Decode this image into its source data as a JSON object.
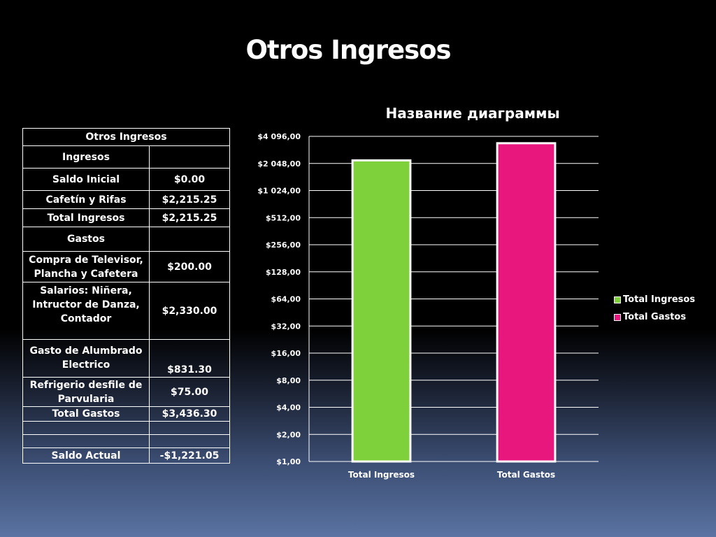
{
  "slide": {
    "title": "Otros Ingresos"
  },
  "table": {
    "header": "Otros Ingresos",
    "rows": [
      {
        "label": "Ingresos",
        "value": ""
      },
      {
        "label": "Saldo Inicial",
        "value": "$0.00"
      },
      {
        "label": "Cafetín y Rifas",
        "value": "$2,215.25"
      },
      {
        "label": "Total Ingresos",
        "value": "$2,215.25"
      },
      {
        "label": "Gastos",
        "value": ""
      },
      {
        "label": "Compra de Televisor, Plancha y Cafetera",
        "value": "$200.00"
      },
      {
        "label": "Salarios: Niñera, Intructor de Danza, Contador",
        "value": "$2,330.00"
      },
      {
        "label": "Gasto de Alumbrado Electrico",
        "value": "$831.30"
      },
      {
        "label": "Refrigerio desfile de Parvularia",
        "value": "$75.00"
      },
      {
        "label": "Total Gastos",
        "value": "$3,436.30"
      },
      {
        "label": "",
        "value": ""
      },
      {
        "label": "",
        "value": ""
      },
      {
        "label": "Saldo Actual",
        "value": "-$1,221.05"
      }
    ]
  },
  "chart_data": {
    "type": "bar",
    "title": "Название диаграммы",
    "scale": "log2",
    "ylim": [
      1,
      4096
    ],
    "yticks": [
      1,
      2,
      4,
      8,
      16,
      32,
      64,
      128,
      256,
      512,
      1024,
      2048,
      4096
    ],
    "ytick_labels": [
      "$1,00",
      "$2,00",
      "$4,00",
      "$8,00",
      "$16,00",
      "$32,00",
      "$64,00",
      "$128,00",
      "$256,00",
      "$512,00",
      "$1 024,00",
      "$2 048,00",
      "$4 096,00"
    ],
    "categories": [
      "Total Ingresos",
      "Total Gastos"
    ],
    "values": [
      2215.25,
      3436.3
    ],
    "colors": [
      "#7fd13b",
      "#e8177d"
    ],
    "legend": [
      "Total Ingresos",
      "Total Gastos"
    ],
    "legend_position": "right",
    "grid": true
  }
}
